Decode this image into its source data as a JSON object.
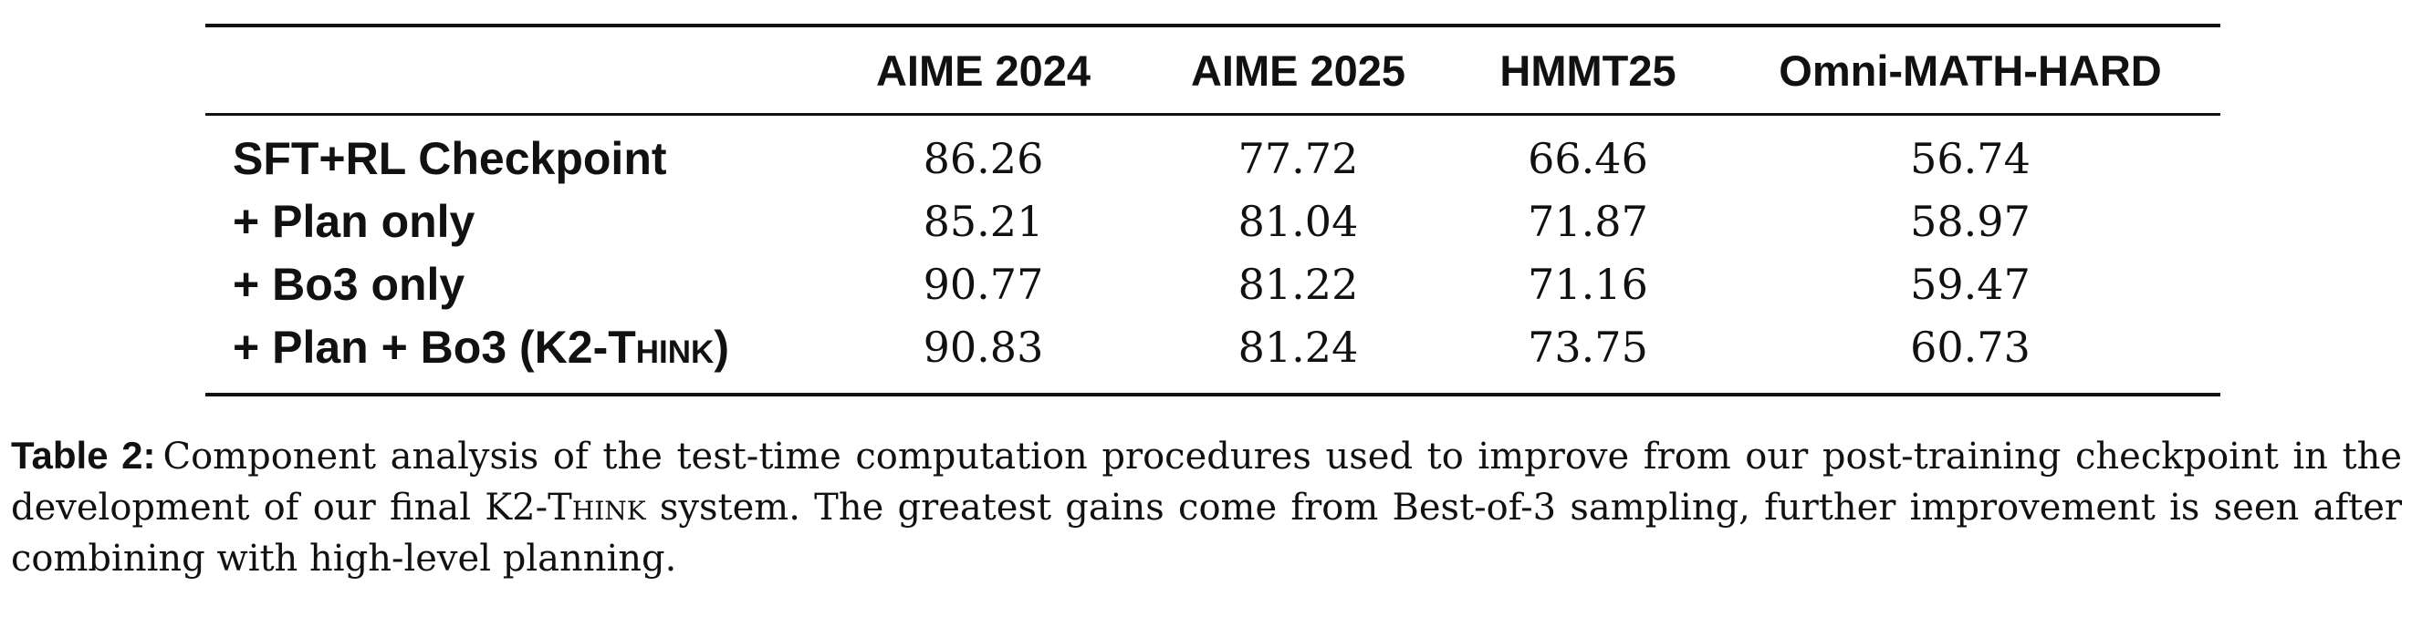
{
  "table": {
    "headers": [
      "",
      "AIME 2024",
      "AIME 2025",
      "HMMT25",
      "Omni-MATH-HARD"
    ],
    "rows": [
      {
        "label": "SFT+RL Checkpoint",
        "values": [
          "86.26",
          "77.72",
          "66.46",
          "56.74"
        ]
      },
      {
        "label": "+ Plan only",
        "values": [
          "85.21",
          "81.04",
          "71.87",
          "58.97"
        ]
      },
      {
        "label": "+ Bo3 only",
        "values": [
          "90.77",
          "81.22",
          "71.16",
          "59.47"
        ]
      },
      {
        "label_prefix": "+ Plan + Bo3 (K",
        "label_sub": "2",
        "label_smallcaps": "-Think",
        "label_suffix": ")",
        "values": [
          "90.83",
          "81.24",
          "73.75",
          "60.73"
        ]
      }
    ]
  },
  "caption": {
    "label": "Table 2:",
    "text_before": "Component analysis of the test-time computation procedures used to improve from our post-training checkpoint in the development of our final K2-",
    "smallcaps": "Think",
    "text_after": " system. The greatest gains come from Best-of-3 sampling, further improvement is seen after combining with high-level planning."
  }
}
